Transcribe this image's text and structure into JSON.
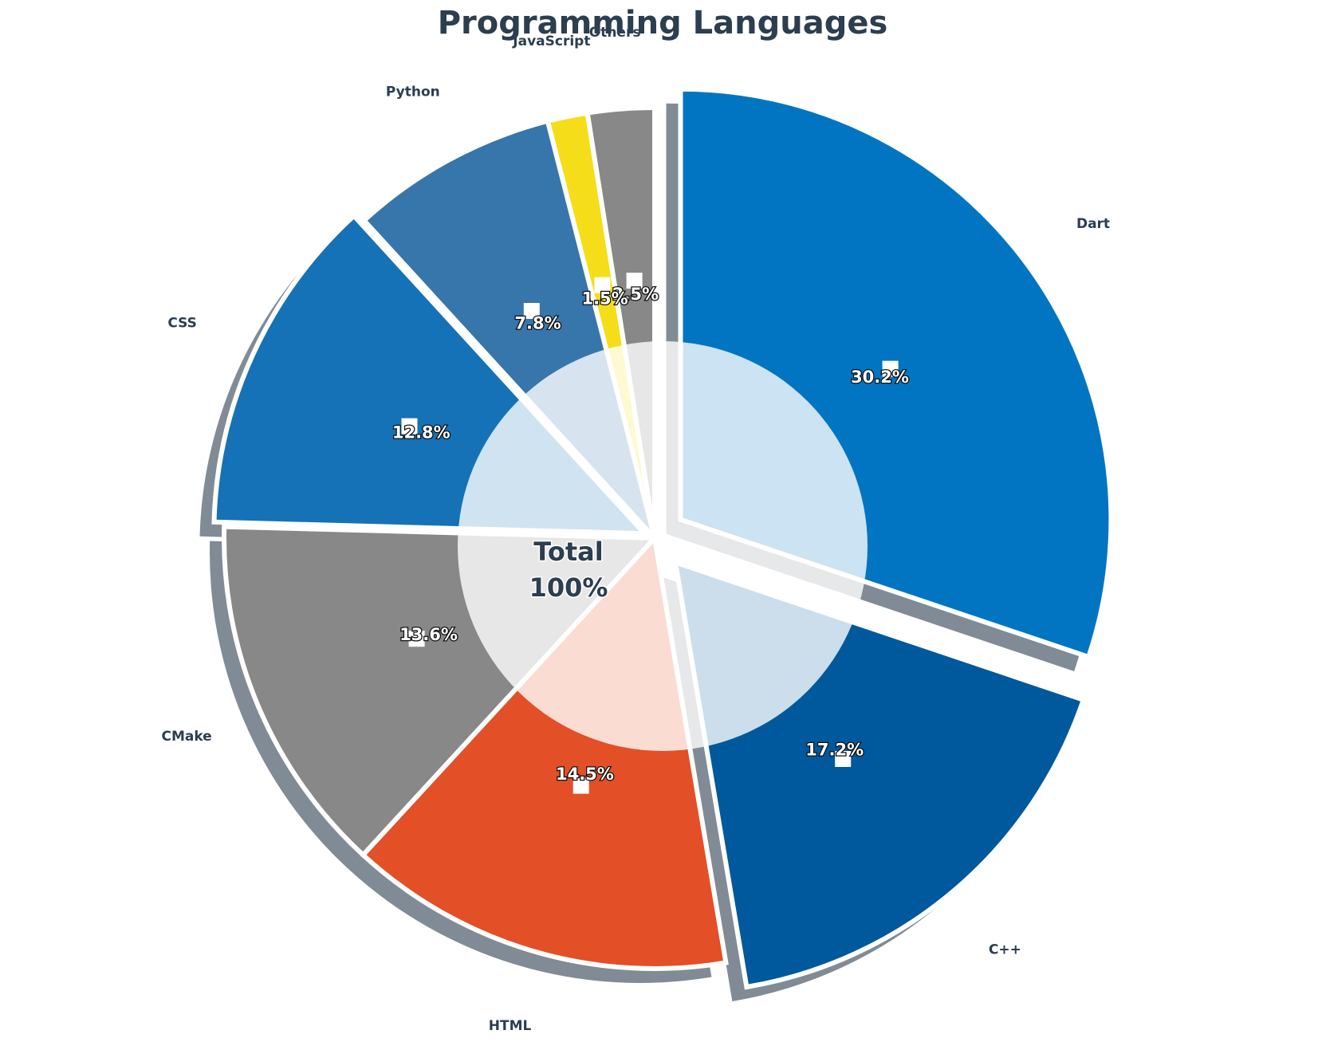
{
  "chart_data": {
    "type": "pie",
    "title": "Programming Languages",
    "center_label": {
      "line1": "Total",
      "line2": "100%"
    },
    "slices": [
      {
        "name": "Others",
        "value": 2.5,
        "label": "2.5%",
        "color": "#888888"
      },
      {
        "name": "JavaScript",
        "value": 1.5,
        "label": "1.5%",
        "color": "#f5de19"
      },
      {
        "name": "Python",
        "value": 7.8,
        "label": "7.8%",
        "color": "#3776ab"
      },
      {
        "name": "CSS",
        "value": 12.8,
        "label": "12.8%",
        "color": "#1572b6"
      },
      {
        "name": "CMake",
        "value": 13.6,
        "label": "13.6%",
        "color": "#888888"
      },
      {
        "name": "HTML",
        "value": 14.5,
        "label": "14.5%",
        "color": "#e34f26"
      },
      {
        "name": "C++",
        "value": 17.2,
        "label": "17.2%",
        "color": "#00599c"
      },
      {
        "name": "Dart",
        "value": 30.2,
        "label": "30.2%",
        "color": "#0175c2"
      }
    ]
  }
}
